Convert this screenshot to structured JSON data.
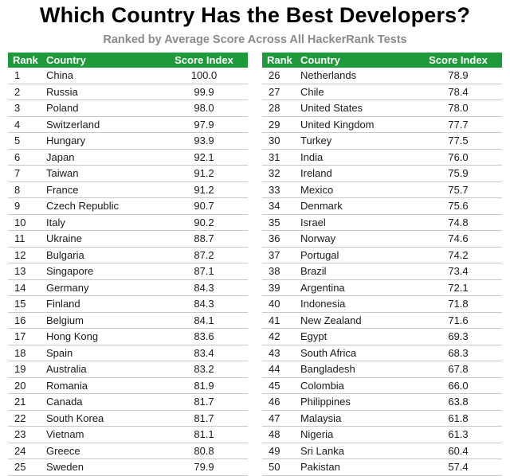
{
  "title": "Which Country Has the Best Developers?",
  "subtitle": "Ranked by Average Score Across All HackerRank Tests",
  "colors": {
    "header_bg": "#1f9a3b",
    "header_text": "#ffffff",
    "subtitle": "#8a8a8a"
  },
  "headers": {
    "rank": "Rank",
    "country": "Country",
    "score": "Score Index"
  },
  "left_rows": [
    {
      "rank": "1",
      "country": "China",
      "score": "100.0"
    },
    {
      "rank": "2",
      "country": "Russia",
      "score": "99.9"
    },
    {
      "rank": "3",
      "country": "Poland",
      "score": "98.0"
    },
    {
      "rank": "4",
      "country": "Switzerland",
      "score": "97.9"
    },
    {
      "rank": "5",
      "country": "Hungary",
      "score": "93.9"
    },
    {
      "rank": "6",
      "country": "Japan",
      "score": "92.1"
    },
    {
      "rank": "7",
      "country": "Taiwan",
      "score": "91.2"
    },
    {
      "rank": "8",
      "country": "France",
      "score": "91.2"
    },
    {
      "rank": "9",
      "country": "Czech Republic",
      "score": "90.7"
    },
    {
      "rank": "10",
      "country": "Italy",
      "score": "90.2"
    },
    {
      "rank": "11",
      "country": "Ukraine",
      "score": "88.7"
    },
    {
      "rank": "12",
      "country": "Bulgaria",
      "score": "87.2"
    },
    {
      "rank": "13",
      "country": "Singapore",
      "score": "87.1"
    },
    {
      "rank": "14",
      "country": "Germany",
      "score": "84.3"
    },
    {
      "rank": "15",
      "country": "Finland",
      "score": "84.3"
    },
    {
      "rank": "16",
      "country": "Belgium",
      "score": "84.1"
    },
    {
      "rank": "17",
      "country": "Hong Kong",
      "score": "83.6"
    },
    {
      "rank": "18",
      "country": "Spain",
      "score": "83.4"
    },
    {
      "rank": "19",
      "country": "Australia",
      "score": "83.2"
    },
    {
      "rank": "20",
      "country": "Romania",
      "score": "81.9"
    },
    {
      "rank": "21",
      "country": "Canada",
      "score": "81.7"
    },
    {
      "rank": "22",
      "country": "South Korea",
      "score": "81.7"
    },
    {
      "rank": "23",
      "country": "Vietnam",
      "score": "81.1"
    },
    {
      "rank": "24",
      "country": "Greece",
      "score": "80.8"
    },
    {
      "rank": "25",
      "country": "Sweden",
      "score": "79.9"
    }
  ],
  "right_rows": [
    {
      "rank": "26",
      "country": "Netherlands",
      "score": "78.9"
    },
    {
      "rank": "27",
      "country": "Chile",
      "score": "78.4"
    },
    {
      "rank": "28",
      "country": "United States",
      "score": "78.0"
    },
    {
      "rank": "29",
      "country": "United Kingdom",
      "score": "77.7"
    },
    {
      "rank": "30",
      "country": "Turkey",
      "score": "77.5"
    },
    {
      "rank": "31",
      "country": "India",
      "score": "76.0"
    },
    {
      "rank": "32",
      "country": "Ireland",
      "score": "75.9"
    },
    {
      "rank": "33",
      "country": "Mexico",
      "score": "75.7"
    },
    {
      "rank": "34",
      "country": "Denmark",
      "score": "75.6"
    },
    {
      "rank": "35",
      "country": "Israel",
      "score": "74.8"
    },
    {
      "rank": "36",
      "country": "Norway",
      "score": "74.6"
    },
    {
      "rank": "37",
      "country": "Portugal",
      "score": "74.2"
    },
    {
      "rank": "38",
      "country": "Brazil",
      "score": "73.4"
    },
    {
      "rank": "39",
      "country": "Argentina",
      "score": "72.1"
    },
    {
      "rank": "40",
      "country": "Indonesia",
      "score": "71.8"
    },
    {
      "rank": "41",
      "country": "New Zealand",
      "score": "71.6"
    },
    {
      "rank": "42",
      "country": "Egypt",
      "score": "69.3"
    },
    {
      "rank": "43",
      "country": "South Africa",
      "score": "68.3"
    },
    {
      "rank": "44",
      "country": "Bangladesh",
      "score": "67.8"
    },
    {
      "rank": "45",
      "country": "Colombia",
      "score": "66.0"
    },
    {
      "rank": "46",
      "country": "Philippines",
      "score": "63.8"
    },
    {
      "rank": "47",
      "country": "Malaysia",
      "score": "61.8"
    },
    {
      "rank": "48",
      "country": "Nigeria",
      "score": "61.3"
    },
    {
      "rank": "49",
      "country": "Sri Lanka",
      "score": "60.4"
    },
    {
      "rank": "50",
      "country": "Pakistan",
      "score": "57.4"
    }
  ]
}
